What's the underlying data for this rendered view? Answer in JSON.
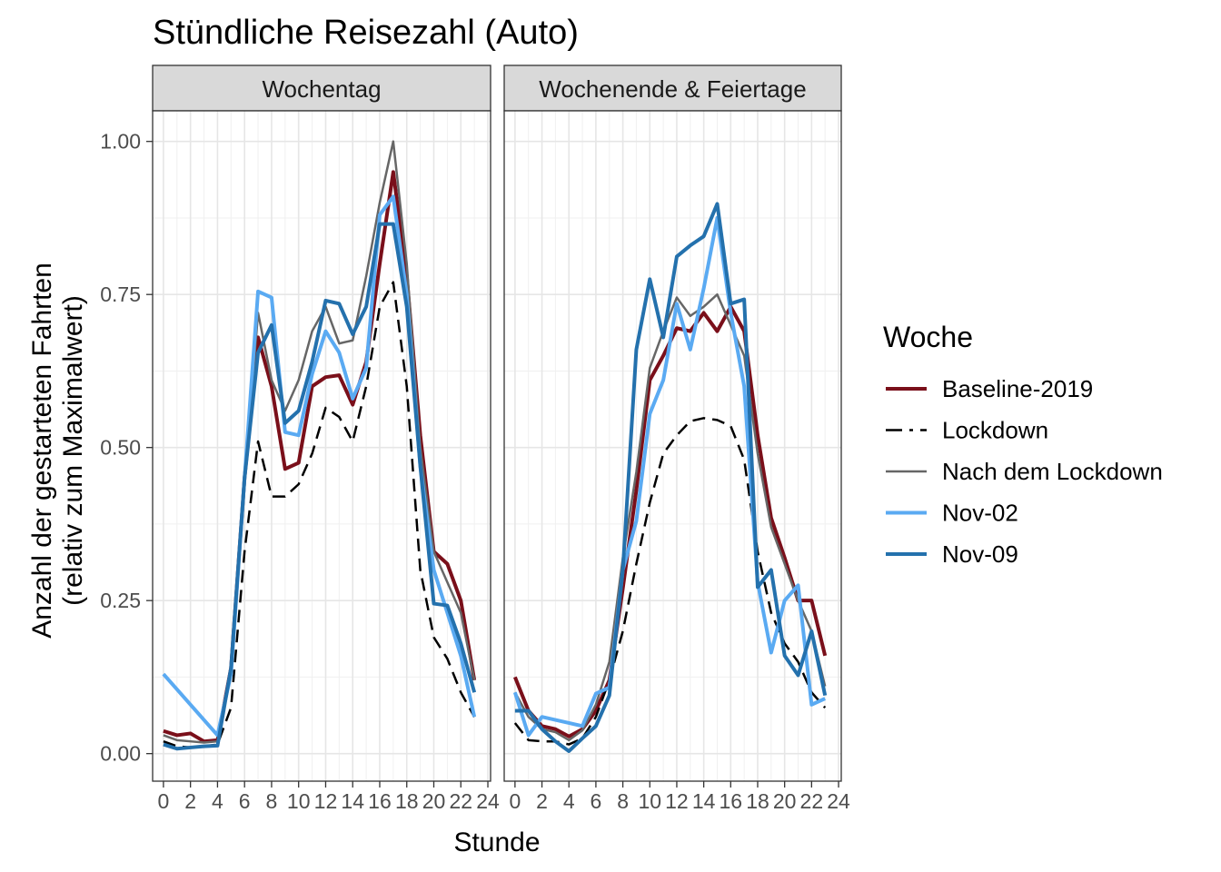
{
  "title": "Stündliche Reisezahl (Auto)",
  "chart_data": {
    "type": "line",
    "title": "Stündliche Reisezahl (Auto)",
    "xlabel": "Stunde",
    "ylabel_line1": "Anzahl der gestarteten Fahrten",
    "ylabel_line2": "(relativ zum Maximalwert)",
    "xlim": [
      -0.8,
      24.2
    ],
    "ylim": [
      -0.045,
      1.05
    ],
    "x_ticks": [
      0,
      2,
      4,
      6,
      8,
      10,
      12,
      14,
      16,
      18,
      20,
      22,
      24
    ],
    "y_ticks": [
      0.0,
      0.25,
      0.5,
      0.75,
      1.0
    ],
    "y_tick_labels": [
      "0.00",
      "0.25",
      "0.50",
      "0.75",
      "1.00"
    ],
    "grid": true,
    "legend": {
      "title": "Woche",
      "placement": "right",
      "entries": [
        "Baseline-2019",
        "Lockdown",
        "Nach dem Lockdown",
        "Nov-02",
        "Nov-09"
      ]
    },
    "series_styles": [
      {
        "name": "Baseline-2019",
        "color": "#7a0f1a",
        "width": 4,
        "dash": ""
      },
      {
        "name": "Lockdown",
        "color": "#000000",
        "width": 2.5,
        "dash": "14,8"
      },
      {
        "name": "Nach dem Lockdown",
        "color": "#666666",
        "width": 2.5,
        "dash": ""
      },
      {
        "name": "Nov-02",
        "color": "#5aaaf2",
        "width": 4,
        "dash": ""
      },
      {
        "name": "Nov-09",
        "color": "#2471ad",
        "width": 4,
        "dash": ""
      }
    ],
    "facets": [
      {
        "label": "Wochentag",
        "series": [
          {
            "name": "Baseline-2019",
            "x": [
              0,
              1,
              2,
              3,
              4,
              5,
              6,
              7,
              8,
              9,
              10,
              11,
              12,
              13,
              14,
              15,
              16,
              17,
              18,
              19,
              20,
              21,
              22,
              23
            ],
            "values": [
              0.037,
              0.03,
              0.033,
              0.02,
              0.022,
              0.14,
              0.45,
              0.68,
              0.6,
              0.465,
              0.475,
              0.6,
              0.615,
              0.618,
              0.57,
              0.64,
              0.8,
              0.95,
              0.78,
              0.52,
              0.33,
              0.31,
              0.25,
              0.12
            ]
          },
          {
            "name": "Lockdown",
            "x": [
              0,
              1,
              2,
              3,
              4,
              5,
              6,
              7,
              8,
              9,
              10,
              11,
              12,
              13,
              14,
              15,
              16,
              17,
              18,
              19,
              20,
              21,
              22,
              23
            ],
            "values": [
              0.02,
              0.012,
              0.01,
              0.012,
              0.015,
              0.075,
              0.33,
              0.51,
              0.42,
              0.42,
              0.44,
              0.49,
              0.565,
              0.55,
              0.51,
              0.6,
              0.73,
              0.77,
              0.6,
              0.3,
              0.19,
              0.155,
              0.1,
              0.06
            ]
          },
          {
            "name": "Nach dem Lockdown",
            "x": [
              0,
              1,
              2,
              3,
              4,
              5,
              6,
              7,
              8,
              9,
              10,
              11,
              12,
              13,
              14,
              15,
              16,
              17,
              18,
              19,
              20,
              21,
              22,
              23
            ],
            "values": [
              0.03,
              0.022,
              0.02,
              0.018,
              0.02,
              0.14,
              0.45,
              0.72,
              0.61,
              0.56,
              0.61,
              0.69,
              0.73,
              0.67,
              0.675,
              0.78,
              0.9,
              1.0,
              0.8,
              0.5,
              0.33,
              0.28,
              0.23,
              0.12
            ]
          },
          {
            "name": "Nov-02",
            "x": [
              0,
              4,
              5,
              6,
              7,
              8,
              9,
              10,
              11,
              12,
              13,
              14,
              15,
              16,
              17,
              18,
              19,
              20,
              21,
              22,
              23
            ],
            "values": [
              0.13,
              0.03,
              0.13,
              0.45,
              0.755,
              0.745,
              0.525,
              0.52,
              0.62,
              0.69,
              0.655,
              0.58,
              0.63,
              0.88,
              0.91,
              0.75,
              0.47,
              0.3,
              0.23,
              0.16,
              0.06
            ]
          },
          {
            "name": "Nov-09",
            "x": [
              0,
              1,
              2,
              3,
              4,
              5,
              6,
              7,
              8,
              9,
              10,
              11,
              12,
              13,
              14,
              15,
              16,
              17,
              18,
              19,
              20,
              21,
              22,
              23
            ],
            "values": [
              0.015,
              0.008,
              0.01,
              0.012,
              0.013,
              0.14,
              0.45,
              0.655,
              0.7,
              0.54,
              0.56,
              0.64,
              0.74,
              0.735,
              0.685,
              0.73,
              0.865,
              0.865,
              0.73,
              0.47,
              0.245,
              0.242,
              0.18,
              0.1
            ]
          }
        ]
      },
      {
        "label": "Wochenende & Feiertage",
        "series": [
          {
            "name": "Baseline-2019",
            "x": [
              0,
              1,
              2,
              3,
              4,
              5,
              6,
              7,
              8,
              9,
              10,
              11,
              12,
              13,
              14,
              15,
              16,
              17,
              18,
              19,
              20,
              21,
              22,
              23
            ],
            "values": [
              0.125,
              0.07,
              0.045,
              0.04,
              0.028,
              0.04,
              0.07,
              0.12,
              0.27,
              0.43,
              0.61,
              0.65,
              0.695,
              0.69,
              0.72,
              0.69,
              0.73,
              0.69,
              0.52,
              0.385,
              0.32,
              0.25,
              0.25,
              0.16
            ]
          },
          {
            "name": "Lockdown",
            "x": [
              0,
              1,
              2,
              3,
              4,
              5,
              6,
              7,
              8,
              9,
              10,
              11,
              12,
              13,
              14,
              15,
              16,
              17,
              18,
              19,
              20,
              21,
              22,
              23
            ],
            "values": [
              0.05,
              0.022,
              0.02,
              0.02,
              0.015,
              0.025,
              0.06,
              0.12,
              0.2,
              0.31,
              0.41,
              0.49,
              0.52,
              0.543,
              0.548,
              0.545,
              0.535,
              0.48,
              0.33,
              0.23,
              0.18,
              0.15,
              0.1,
              0.075
            ]
          },
          {
            "name": "Nach dem Lockdown",
            "x": [
              0,
              1,
              2,
              3,
              4,
              5,
              6,
              7,
              8,
              9,
              10,
              11,
              12,
              13,
              14,
              15,
              16,
              17,
              18,
              19,
              20,
              21,
              22,
              23
            ],
            "values": [
              0.1,
              0.06,
              0.04,
              0.035,
              0.022,
              0.038,
              0.08,
              0.15,
              0.32,
              0.46,
              0.63,
              0.69,
              0.745,
              0.715,
              0.73,
              0.75,
              0.7,
              0.65,
              0.49,
              0.37,
              0.31,
              0.25,
              0.2,
              0.11
            ]
          },
          {
            "name": "Nov-02",
            "x": [
              0,
              1,
              2,
              3,
              4,
              5,
              6,
              7,
              8,
              9,
              10,
              11,
              12,
              13,
              14,
              15,
              16,
              17,
              18,
              19,
              20,
              21,
              22,
              23
            ],
            "values": [
              0.1,
              0.03,
              0.06,
              0.055,
              0.05,
              0.045,
              0.098,
              0.108,
              0.3,
              0.38,
              0.555,
              0.61,
              0.735,
              0.66,
              0.76,
              0.875,
              0.72,
              0.6,
              0.28,
              0.165,
              0.25,
              0.275,
              0.08,
              0.09
            ]
          },
          {
            "name": "Nov-09",
            "x": [
              0,
              1,
              2,
              3,
              4,
              5,
              6,
              7,
              8,
              9,
              10,
              11,
              12,
              13,
              14,
              15,
              16,
              17,
              18,
              19,
              20,
              21,
              22,
              23
            ],
            "values": [
              0.07,
              0.07,
              0.04,
              0.02,
              0.004,
              0.025,
              0.045,
              0.095,
              0.3,
              0.66,
              0.775,
              0.68,
              0.812,
              0.83,
              0.845,
              0.898,
              0.735,
              0.742,
              0.272,
              0.3,
              0.16,
              0.128,
              0.2,
              0.095
            ]
          }
        ]
      }
    ]
  }
}
